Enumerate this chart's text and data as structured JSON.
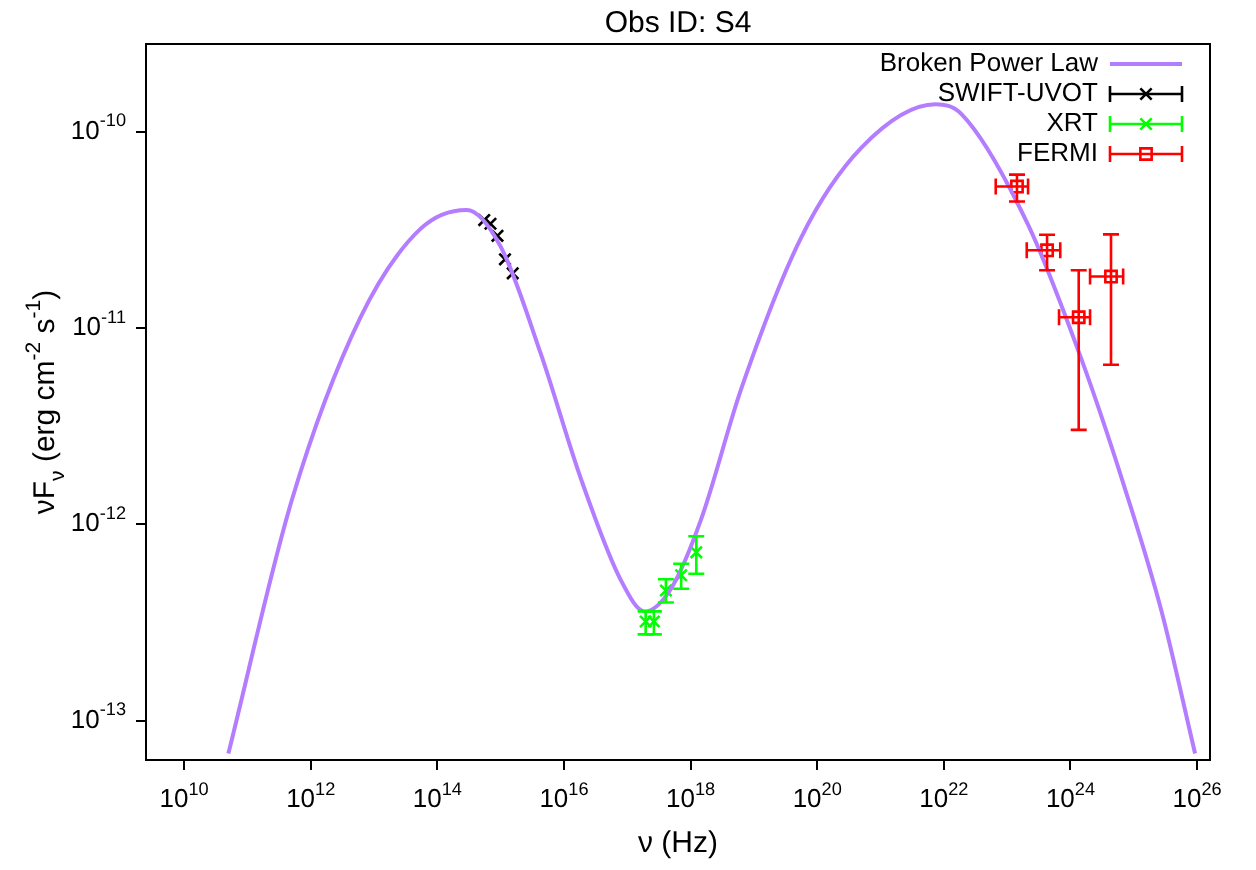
{
  "chart_data": {
    "type": "scatter",
    "title": "Obs ID: S4",
    "xlabel": "ν (Hz)",
    "ylabel": "νF$_{ν}$ (erg cm$^{-2}$ s$^{-1}$)",
    "log": "xy",
    "grid": false,
    "legend": "top right",
    "xlim": [
      2500000000.0,
      1.6e+26
    ],
    "ylim": [
      6.3e-14,
      2.8e-10
    ],
    "xticks": [
      {
        "value": 10000000000.0,
        "label": "10$^{10}$"
      },
      {
        "value": 1000000000000.0,
        "label": "10$^{12}$"
      },
      {
        "value": 100000000000000.0,
        "label": "10$^{14}$"
      },
      {
        "value": 1e+16,
        "label": "10$^{16}$"
      },
      {
        "value": 1e+18,
        "label": "10$^{18}$"
      },
      {
        "value": 1e+20,
        "label": "10$^{20}$"
      },
      {
        "value": 1e+22,
        "label": "10$^{22}$"
      },
      {
        "value": 1e+24,
        "label": "10$^{24}$"
      },
      {
        "value": 1e+26,
        "label": "10$^{26}$"
      }
    ],
    "yticks": [
      {
        "value": 1e-13,
        "label": "10$^{-13}$"
      },
      {
        "value": 1e-12,
        "label": "10$^{-12}$"
      },
      {
        "value": 1e-11,
        "label": "10$^{-11}$"
      },
      {
        "value": 1e-10,
        "label": "10$^{-10}$"
      }
    ],
    "series": [
      {
        "name": "Broken Power Law",
        "type": "line",
        "color": "#b47cff",
        "marker": "none",
        "x": [
          50000000000.0,
          510000000000.0,
          6000000000000.0,
          54000000000000.0,
          290000000000000.0,
          1000000000000000.0,
          4300000000000000.0,
          1.86e+16,
          7.9e+16,
          1.9e+17,
          4.9e+17,
          1.45e+18,
          6.3e+18,
          5.6e+19,
          5e+20,
          7.4e+21,
          1.9e+22,
          2.1e+23,
          1.5e+24,
          6.5e+24,
          2.75e+25,
          9.3e+25
        ],
        "values": [
          6.8e-14,
          1.35e-12,
          1.12e-11,
          3.2e-11,
          4e-11,
          2.6e-11,
          7.4e-12,
          1.7e-12,
          5.2e-13,
          3.6e-13,
          4.7e-13,
          1.05e-12,
          4.9e-12,
          2.9e-11,
          8.3e-11,
          1.38e-10,
          1.23e-10,
          3.4e-11,
          6.9e-12,
          1.7e-12,
          3.6e-13,
          6.8e-14
        ]
      },
      {
        "name": "SWIFT-UVOT",
        "color": "#000000",
        "marker": "cross",
        "x": [
          550000000000000.0,
          690000000000000.0,
          890000000000000.0,
          1170000000000000.0,
          1550000000000000.0
        ],
        "values": [
          3.55e-11,
          3.4e-11,
          2.95e-11,
          2.24e-11,
          1.9e-11
        ]
      },
      {
        "name": "XRT",
        "color": "#00ff00",
        "marker": "cross",
        "x": [
          1.95e+17,
          2.63e+17,
          4.07e+17,
          7.1e+17,
          1.23e+18
        ],
        "values": [
          3.2e-13,
          3.2e-13,
          4.6e-13,
          5.5e-13,
          7.2e-13
        ],
        "errors": [
          [
            2.75e-13,
            3.6e-13
          ],
          [
            2.75e-13,
            3.6e-13
          ],
          [
            4e-13,
            5.25e-13
          ],
          [
            4.7e-13,
            6.3e-13
          ],
          [
            5.6e-13,
            8.7e-13
          ]
        ]
      },
      {
        "name": "FERMI",
        "color": "#ff0000",
        "marker": "square",
        "x": [
          1.43e+23,
          4.27e+23,
          1.35e+24,
          4.37e+24
        ],
        "values": [
          5.26e-11,
          2.49e-11,
          1.135e-11,
          1.83e-11
        ],
        "errors": [
          [
            4.41e-11,
            6.05e-11
          ],
          [
            1.97e-11,
            2.99e-11
          ],
          [
            3.03e-12,
            1.97e-11
          ],
          [
            6.5e-12,
            3e-11
          ]
        ],
        "xerrors": [
          [
            6.6e+22,
            2.14e+23
          ],
          [
            2.04e+23,
            6.9e+23
          ],
          [
            6.6e+23,
            2.04e+24
          ],
          [
            2.04e+24,
            6.8e+24
          ]
        ]
      }
    ]
  }
}
